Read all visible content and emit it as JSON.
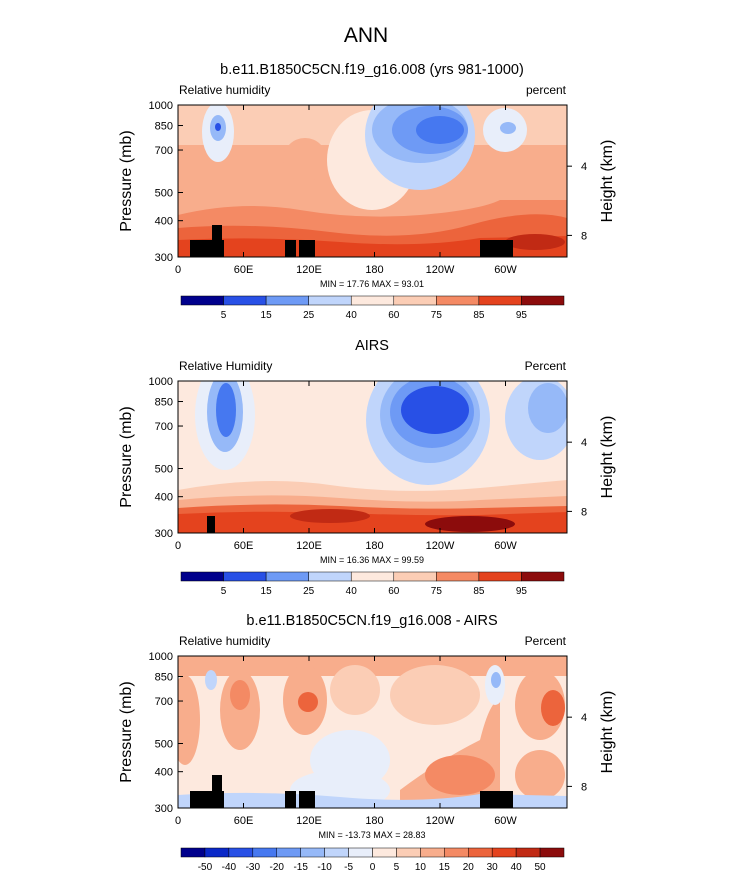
{
  "figure": {
    "title": "ANN",
    "panels": [
      {
        "title": "b.e11.B1850C5CN.f19_g16.008 (yrs 981-1000)",
        "left_label": "Relative humidity",
        "right_label": "percent",
        "stats": "MIN =  17.76  MAX =  93.01"
      },
      {
        "title": "AIRS",
        "left_label": "Relative Humidity",
        "right_label": "Percent",
        "stats": "MIN =  16.36  MAX =  99.59"
      },
      {
        "title": "b.e11.B1850C5CN.f19_g16.008 - AIRS",
        "left_label": "Relative humidity",
        "right_label": "Percent",
        "stats": "MIN = -13.73  MAX =  28.83"
      }
    ],
    "ylabel": "Pressure (mb)",
    "y2label": "Height (km)"
  },
  "chart_data": [
    {
      "type": "heatmap",
      "title": "b.e11.B1850C5CN.f19_g16.008 (yrs 981-1000)",
      "xlabel": "",
      "ylabel": "Pressure (mb)",
      "y2label": "Height (km)",
      "x_ticks": [
        "0",
        "60E",
        "120E",
        "180",
        "120W",
        "60W"
      ],
      "y_ticks": [
        "300",
        "400",
        "500",
        "700",
        "850",
        "1000"
      ],
      "y2_ticks": [
        "8",
        "4"
      ],
      "x_range": [
        0,
        360
      ],
      "y_range": [
        1000,
        300
      ],
      "y_scale": "log",
      "units": "percent",
      "colorbar_ticks": [
        "5",
        "15",
        "25",
        "40",
        "60",
        "75",
        "85",
        "95"
      ],
      "min": 17.76,
      "max": 93.01
    },
    {
      "type": "heatmap",
      "title": "AIRS",
      "xlabel": "",
      "ylabel": "Pressure (mb)",
      "y2label": "Height (km)",
      "x_ticks": [
        "0",
        "60E",
        "120E",
        "180",
        "120W",
        "60W"
      ],
      "y_ticks": [
        "300",
        "400",
        "500",
        "700",
        "850",
        "1000"
      ],
      "y2_ticks": [
        "8",
        "4"
      ],
      "x_range": [
        0,
        360
      ],
      "y_range": [
        1000,
        300
      ],
      "y_scale": "log",
      "units": "Percent",
      "colorbar_ticks": [
        "5",
        "15",
        "25",
        "40",
        "60",
        "75",
        "85",
        "95"
      ],
      "min": 16.36,
      "max": 99.59
    },
    {
      "type": "heatmap",
      "title": "b.e11.B1850C5CN.f19_g16.008 - AIRS",
      "xlabel": "",
      "ylabel": "Pressure (mb)",
      "y2label": "Height (km)",
      "x_ticks": [
        "0",
        "60E",
        "120E",
        "180",
        "120W",
        "60W"
      ],
      "y_ticks": [
        "300",
        "400",
        "500",
        "700",
        "850",
        "1000"
      ],
      "y2_ticks": [
        "8",
        "4"
      ],
      "x_range": [
        0,
        360
      ],
      "y_range": [
        1000,
        300
      ],
      "y_scale": "log",
      "units": "Percent",
      "colorbar_ticks": [
        "-50",
        "-40",
        "-30",
        "-20",
        "-15",
        "-10",
        "-5",
        "0",
        "5",
        "10",
        "15",
        "20",
        "30",
        "40",
        "50"
      ],
      "min": -13.73,
      "max": 28.83
    }
  ],
  "colors": {
    "colormap": [
      "#00008c",
      "#0a28c8",
      "#2850e6",
      "#4678f0",
      "#6e9af5",
      "#96b9f8",
      "#c0d5fb",
      "#e8eefa",
      "#fde9de",
      "#fbcdb5",
      "#f8ad8c",
      "#f48a64",
      "#ec643c",
      "#e4431e",
      "#c12a14",
      "#8c0c0c"
    ],
    "terrain": "#000000"
  }
}
